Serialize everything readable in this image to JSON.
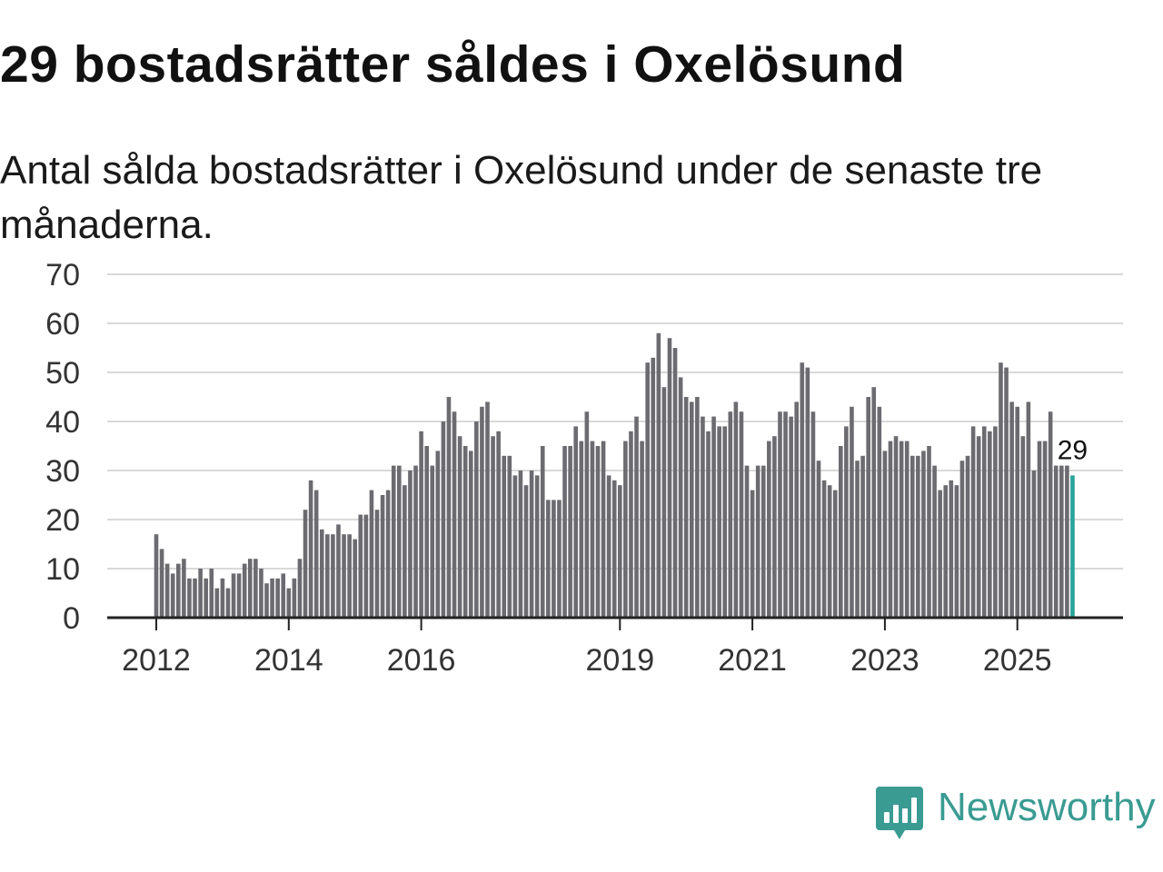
{
  "title": "29 bostadsrätter såldes i Oxelösund",
  "subtitle": "Antal sålda bostadsrätter i Oxelösund under de senaste tre månaderna.",
  "brand": {
    "name": "Newsworthy",
    "logo_icon": "newsworthy-logo-icon",
    "color": "#3a9b92"
  },
  "colors": {
    "bar": "#6b6b70",
    "highlight": "#27a39a",
    "grid": "#d9d9d9",
    "axis": "#222222"
  },
  "chart_data": {
    "type": "bar",
    "title": "29 bostadsrätter såldes i Oxelösund",
    "xlabel": "",
    "ylabel": "",
    "ylim": [
      0,
      70
    ],
    "yticks": [
      "0",
      "10",
      "20",
      "30",
      "40",
      "50",
      "60",
      "70"
    ],
    "grid": true,
    "legend": "none",
    "start": {
      "year": 2012,
      "month": 1
    },
    "interval": "monthly, rolling three-month total",
    "xticks": [
      {
        "label": "2012",
        "index": 0
      },
      {
        "label": "2014",
        "index": 24
      },
      {
        "label": "2016",
        "index": 48
      },
      {
        "label": "2019",
        "index": 84
      },
      {
        "label": "2021",
        "index": 108
      },
      {
        "label": "2023",
        "index": 132
      },
      {
        "label": "2025",
        "index": 156
      }
    ],
    "values": [
      17,
      14,
      11,
      9,
      11,
      12,
      8,
      8,
      10,
      8,
      10,
      6,
      8,
      6,
      9,
      9,
      11,
      12,
      12,
      10,
      7,
      8,
      8,
      9,
      6,
      8,
      12,
      22,
      28,
      26,
      18,
      17,
      17,
      19,
      17,
      17,
      16,
      21,
      21,
      26,
      22,
      25,
      26,
      31,
      31,
      27,
      30,
      31,
      38,
      35,
      31,
      34,
      40,
      45,
      42,
      37,
      35,
      34,
      40,
      43,
      44,
      37,
      38,
      33,
      33,
      29,
      30,
      27,
      30,
      29,
      35,
      24,
      24,
      24,
      35,
      35,
      39,
      36,
      42,
      36,
      35,
      36,
      29,
      28,
      27,
      36,
      38,
      41,
      36,
      52,
      53,
      58,
      47,
      57,
      55,
      49,
      45,
      44,
      45,
      41,
      38,
      41,
      39,
      39,
      42,
      44,
      42,
      31,
      26,
      31,
      31,
      36,
      37,
      42,
      42,
      41,
      44,
      52,
      51,
      42,
      32,
      28,
      27,
      26,
      35,
      39,
      43,
      32,
      33,
      45,
      47,
      43,
      34,
      36,
      37,
      36,
      36,
      33,
      33,
      34,
      35,
      31,
      26,
      27,
      28,
      27,
      32,
      33,
      39,
      37,
      39,
      38,
      39,
      52,
      51,
      44,
      43,
      37,
      44,
      30,
      36,
      36,
      42,
      31,
      31,
      31,
      29
    ],
    "highlight_last": true,
    "annotation": {
      "label": "29",
      "target": "last"
    }
  }
}
